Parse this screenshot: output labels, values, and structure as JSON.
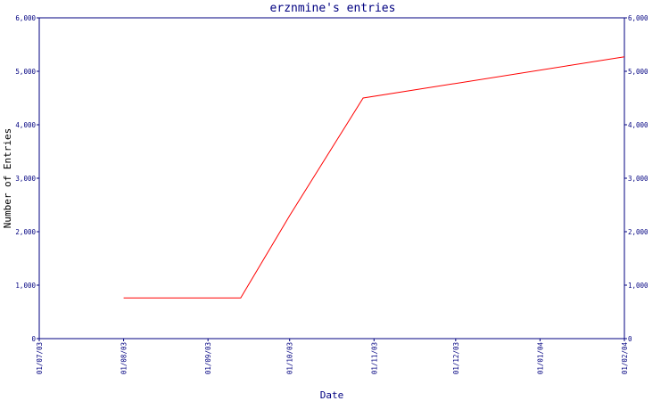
{
  "chart_data": {
    "type": "line",
    "title": "erznmine's entries",
    "xlabel": "Date",
    "ylabel": "Number of Entries",
    "x_tick_labels": [
      "01/07/03",
      "01/08/03",
      "01/09/03",
      "01/10/03",
      "01/11/03",
      "01/12/03",
      "01/01/04",
      "01/02/04"
    ],
    "y_tick_labels": [
      "0",
      "1,000",
      "2,000",
      "3,000",
      "4,000",
      "5,000",
      "6,000"
    ],
    "y_ticks": [
      0,
      1000,
      2000,
      3000,
      4000,
      5000,
      6000
    ],
    "ylim": [
      0,
      6000
    ],
    "xlim": [
      "2003-07-01",
      "2004-02-01"
    ],
    "series": [
      {
        "x": [
          "2003-08-01",
          "2003-09-13",
          "2003-10-01",
          "2003-10-28",
          "2004-02-01"
        ],
        "y": [
          760,
          760,
          2300,
          4500,
          5270
        ]
      }
    ],
    "grid": false,
    "right_axis": true,
    "colors": {
      "line": "#ff0000",
      "axis": "#000080",
      "text": "#000080"
    }
  }
}
